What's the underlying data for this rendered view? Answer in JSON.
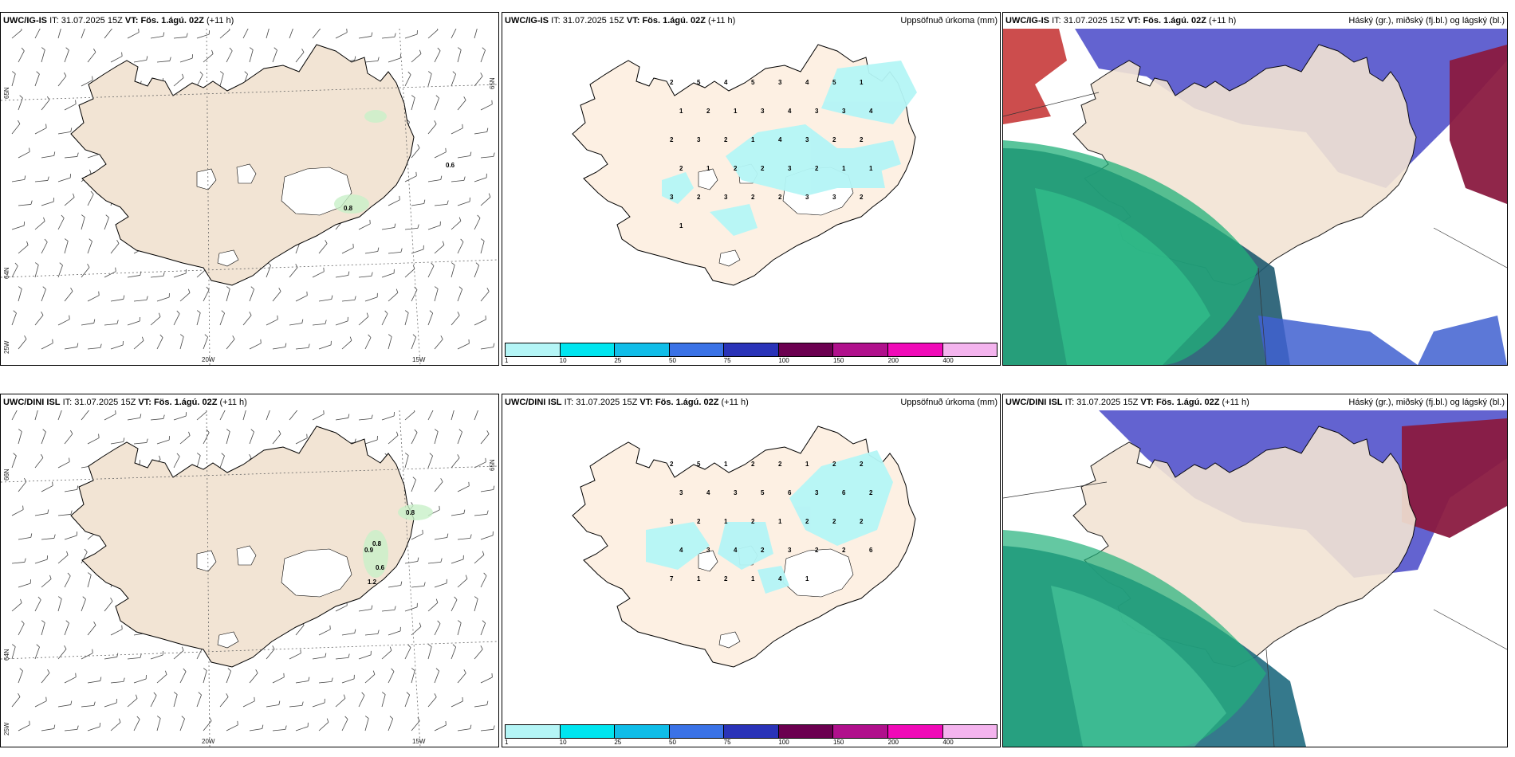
{
  "panels": [
    {
      "id": "ig-wind",
      "model": "UWC/IG-IS",
      "it_label": "IT:",
      "it_value": "31.07.2025 15Z",
      "vt_label": "VT:",
      "vt_value": "Fös. 1.ágú. 02Z",
      "lead": "(+11 h)",
      "right_title": "",
      "grid_labels": {
        "lat_top": "65N",
        "lat_bottom": "64N",
        "lon_left": "25W",
        "lon_mid": "20W",
        "lon_right": "15W",
        "lat_right": "65N"
      },
      "precip_labels": [
        "0.8",
        "0.6"
      ]
    },
    {
      "id": "ig-precip",
      "model": "UWC/IG-IS",
      "it_label": "IT:",
      "it_value": "31.07.2025 15Z",
      "vt_label": "VT:",
      "vt_value": "Fös. 1.ágú. 02Z",
      "lead": "(+11 h)",
      "right_title": "Uppsöfnuð úrkoma (mm)",
      "colorbar_ticks": [
        "1",
        "10",
        "25",
        "50",
        "75",
        "100",
        "150",
        "200",
        "400"
      ],
      "colorbar_colors": [
        "#b4f5f6",
        "#00e5ef",
        "#10bde8",
        "#3a72e6",
        "#2a33b8",
        "#6b0050",
        "#b0108c",
        "#f00ab8",
        "#f4b4ee"
      ],
      "amounts": [
        "2",
        "5",
        "4",
        "5",
        "3",
        "4",
        "5",
        "1",
        "1",
        "2",
        "1",
        "3",
        "4",
        "3",
        "3",
        "4",
        "2",
        "3",
        "2",
        "1",
        "4",
        "3",
        "2",
        "2",
        "2",
        "1",
        "2",
        "2",
        "3",
        "2",
        "1",
        "1",
        "3",
        "2",
        "3",
        "2",
        "2",
        "3",
        "3",
        "2",
        "1"
      ]
    },
    {
      "id": "ig-cloud",
      "model": "UWC/IG-IS",
      "it_label": "IT:",
      "it_value": "31.07.2025 15Z",
      "vt_label": "VT:",
      "vt_value": "Fös. 1.ágú. 02Z",
      "lead": "(+11 h)",
      "right_title": "Háský (gr.), miðský (fj.bl.) og lágský (bl.)"
    },
    {
      "id": "dini-wind",
      "model": "UWC/DINI ISL",
      "it_label": "IT:",
      "it_value": "31.07.2025 15Z",
      "vt_label": "VT:",
      "vt_value": "Fös. 1.ágú. 02Z",
      "lead": "(+11 h)",
      "right_title": "",
      "grid_labels": {
        "lat_top": "66N",
        "lat_bottom": "64N",
        "lon_left": "25W",
        "lon_mid": "20W",
        "lon_right": "15W",
        "lat_right": "65N"
      },
      "precip_labels": [
        "0.8",
        "0.8",
        "0.9",
        "0.6",
        "1.2"
      ]
    },
    {
      "id": "dini-precip",
      "model": "UWC/DINI ISL",
      "it_label": "IT:",
      "it_value": "31.07.2025 15Z",
      "vt_label": "VT:",
      "vt_value": "Fös. 1.ágú. 02Z",
      "lead": "(+11 h)",
      "right_title": "Uppsöfnuð úrkoma (mm)",
      "colorbar_ticks": [
        "1",
        "10",
        "25",
        "50",
        "75",
        "100",
        "150",
        "200",
        "400"
      ],
      "colorbar_colors": [
        "#b4f5f6",
        "#00e5ef",
        "#10bde8",
        "#3a72e6",
        "#2a33b8",
        "#6b0050",
        "#b0108c",
        "#f00ab8",
        "#f4b4ee"
      ],
      "amounts": [
        "2",
        "5",
        "1",
        "2",
        "2",
        "1",
        "2",
        "2",
        "3",
        "4",
        "3",
        "5",
        "6",
        "3",
        "6",
        "2",
        "3",
        "2",
        "1",
        "2",
        "1",
        "2",
        "2",
        "2",
        "4",
        "3",
        "4",
        "2",
        "3",
        "2",
        "2",
        "6",
        "7",
        "1",
        "2",
        "1",
        "4",
        "1"
      ]
    },
    {
      "id": "dini-cloud",
      "model": "UWC/DINI ISL",
      "it_label": "IT:",
      "it_value": "31.07.2025 15Z",
      "vt_label": "VT:",
      "vt_value": "Fös. 1.ágú. 02Z",
      "lead": "(+11 h)",
      "right_title": "Háský (gr.), miðský (fj.bl.) og lágský (bl.)"
    }
  ],
  "colors": {
    "land_wind": "#f2e4d4",
    "land_precip": "#fdf0e3",
    "land_cloud": "#f2e4d4",
    "glacier": "#ffffff",
    "precip_light": "#b4f5f6",
    "high_cloud": "#1fa878",
    "mid_cloud": "#5a5ad0",
    "low_cloud": "#8a1a40"
  }
}
